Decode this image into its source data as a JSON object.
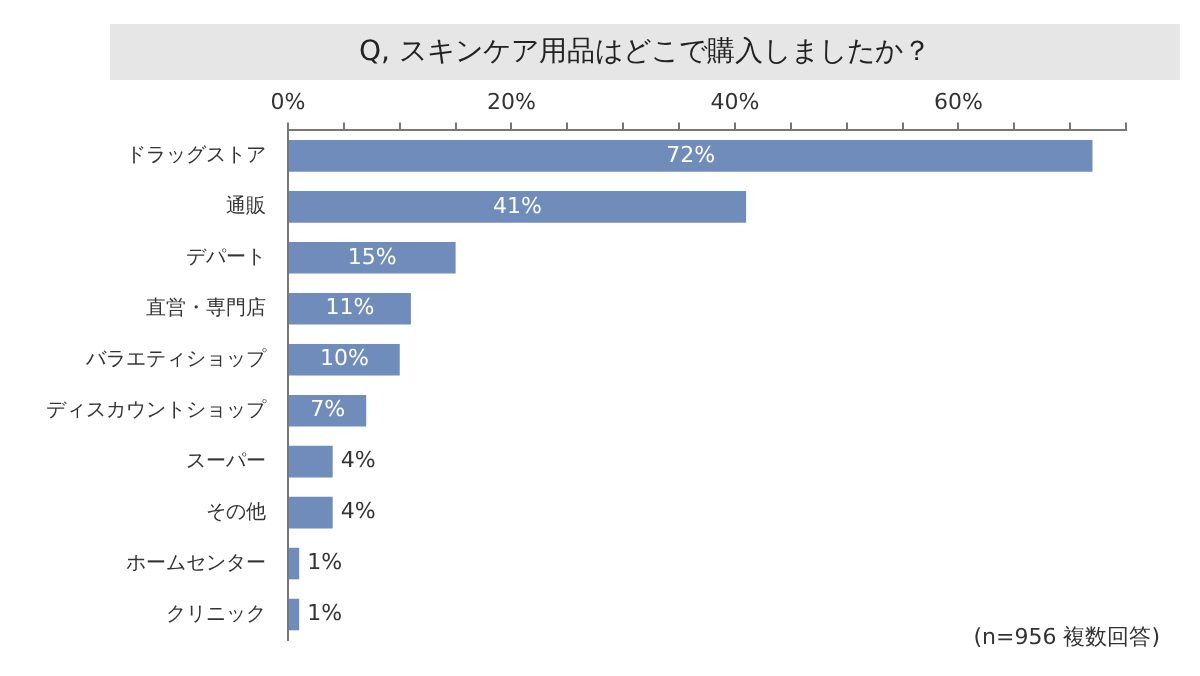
{
  "chart_data": {
    "type": "bar",
    "orientation": "horizontal",
    "title": "Q, スキンケア用品はどこで購入しましたか？",
    "categories": [
      "ドラッグストア",
      "通販",
      "デパート",
      "直営・専門店",
      "バラエティショップ",
      "ディスカウントショップ",
      "スーパー",
      "その他",
      "ホームセンター",
      "クリニック"
    ],
    "values": [
      72,
      41,
      15,
      11,
      10,
      7,
      4,
      4,
      1,
      1
    ],
    "value_labels": [
      "72%",
      "41%",
      "15%",
      "11%",
      "10%",
      "7%",
      "4%",
      "4%",
      "1%",
      "1%"
    ],
    "color": "#6f8cba",
    "xlim": [
      0,
      75
    ],
    "xticks": [
      {
        "value": 0,
        "label": "0%"
      },
      {
        "value": 5,
        "label": null
      },
      {
        "value": 10,
        "label": null
      },
      {
        "value": 15,
        "label": null
      },
      {
        "value": 20,
        "label": "20%"
      },
      {
        "value": 25,
        "label": null
      },
      {
        "value": 30,
        "label": null
      },
      {
        "value": 35,
        "label": null
      },
      {
        "value": 40,
        "label": "40%"
      },
      {
        "value": 45,
        "label": null
      },
      {
        "value": 50,
        "label": null
      },
      {
        "value": 55,
        "label": null
      },
      {
        "value": 60,
        "label": "60%"
      },
      {
        "value": 65,
        "label": null
      },
      {
        "value": 70,
        "label": null
      },
      {
        "value": 75,
        "label": null
      }
    ],
    "legend": false,
    "annotations": [
      "(n=956 複数回答)"
    ]
  }
}
